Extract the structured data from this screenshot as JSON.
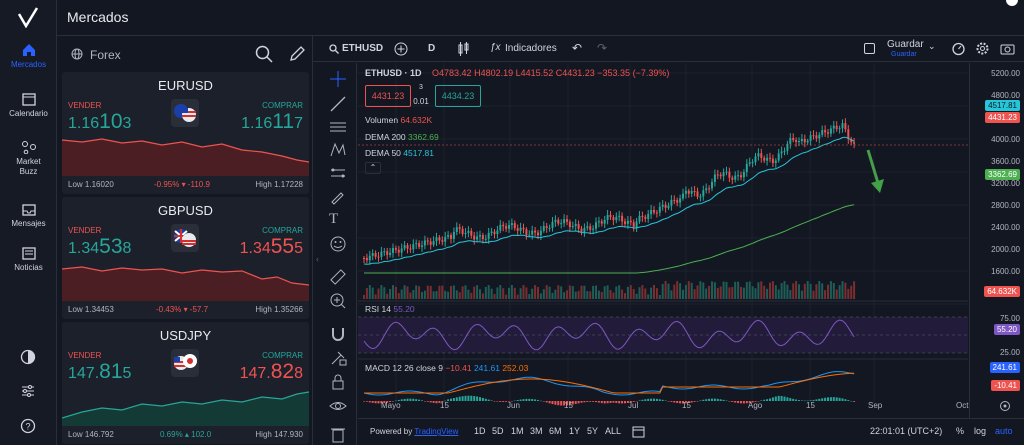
{
  "app": {
    "title": "Mercados"
  },
  "nav": {
    "items": [
      {
        "label": "Mercados"
      },
      {
        "label": "Calendario"
      },
      {
        "label": "Market Buzz"
      },
      {
        "label": "Mensajes"
      },
      {
        "label": "Noticias"
      }
    ]
  },
  "panel": {
    "category": "Forex",
    "sell_label": "VENDER",
    "buy_label": "COMPRAR",
    "pairs": [
      {
        "name": "EURUSD",
        "sell": {
          "pre": "1.16",
          "big": "10",
          "small": "3"
        },
        "buy": {
          "pre": "1.16",
          "big": "11",
          "small": "7"
        },
        "low": "Low 1.16020",
        "change": "-0.95% ▾ -110.9",
        "high": "High 1.17228",
        "trend": "down"
      },
      {
        "name": "GBPUSD",
        "sell": {
          "pre": "1.34",
          "big": "53",
          "small": "8"
        },
        "buy": {
          "pre": "1.34",
          "big": "55",
          "small": "5"
        },
        "low": "Low 1.34453",
        "change": "-0.43% ▾ -57.7",
        "high": "High 1.35266",
        "trend": "down"
      },
      {
        "name": "USDJPY",
        "sell": {
          "pre": "147.",
          "big": "81",
          "small": "5"
        },
        "buy": {
          "pre": "147.",
          "big": "82",
          "small": "8"
        },
        "low": "Low 146.792",
        "change": "0.69% ▴ 102.0",
        "high": "High 147.930",
        "trend": "up"
      }
    ]
  },
  "chart": {
    "symbol": "ETHUSD",
    "interval": "D",
    "indicators_label": "Indicadores",
    "save_label": "Guardar",
    "save_sub": "Guardar",
    "legend": {
      "title": "ETHUSD · 1D",
      "o": "O4783.42",
      "h": "H4802.19",
      "l": "L4415.52",
      "c": "C4431.23",
      "chg": "−353.35 (−7.39%)"
    },
    "bid": "4431.23",
    "spread_top": "3",
    "spread": "0.01",
    "ask": "4434.23",
    "volume": {
      "label": "Volumen",
      "value": "64.632K"
    },
    "dema200": {
      "label": "DEMA 200",
      "value": "3362.69"
    },
    "dema50": {
      "label": "DEMA 50",
      "value": "4517.81"
    },
    "rsi": {
      "label": "RSI 14",
      "value": "55.20"
    },
    "macd": {
      "label": "MACD 12 26 close 9",
      "v1": "−10.41",
      "v2": "241.61",
      "v3": "252.03"
    },
    "yaxis": [
      "5200.00",
      "4800.00",
      "4000.00",
      "3600.00",
      "3200.00",
      "2800.00",
      "2400.00",
      "2000.00",
      "1600.00"
    ],
    "tags": {
      "dema50": "4517.81",
      "price": "4431.23",
      "dema200": "3362.69",
      "vol": "64.632K",
      "rsi": "55.20",
      "macd1": "241.61",
      "macd2": "-10.41"
    },
    "rsi_axis": [
      "75.00",
      "25.00"
    ],
    "xaxis": [
      "Mayo",
      "15",
      "Jun",
      "15",
      "Jul",
      "15",
      "Ago",
      "15",
      "Sep",
      "Oct"
    ],
    "bottom": {
      "powered": "Powered by",
      "brand": "TradingView",
      "ranges": [
        "1D",
        "5D",
        "1M",
        "3M",
        "6M",
        "1Y",
        "5Y",
        "ALL"
      ],
      "time": "22:01:01 (UTC+2)",
      "pct": "%",
      "log": "log",
      "auto": "auto"
    }
  }
}
